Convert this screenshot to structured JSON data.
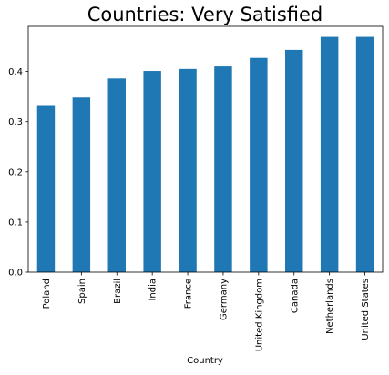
{
  "chart_data": {
    "type": "bar",
    "title": "Countries: Very Satisfied",
    "xlabel": "Country",
    "ylabel": "",
    "categories": [
      "Poland",
      "Spain",
      "Brazil",
      "India",
      "France",
      "Germany",
      "United Kingdom",
      "Canada",
      "Netherlands",
      "United States"
    ],
    "values": [
      0.333,
      0.348,
      0.386,
      0.401,
      0.405,
      0.41,
      0.427,
      0.443,
      0.469,
      0.469
    ],
    "ylim": [
      0,
      0.49
    ],
    "yticks": [
      0.0,
      0.1,
      0.2,
      0.3,
      0.4
    ],
    "ytick_labels": [
      "0.0",
      "0.1",
      "0.2",
      "0.3",
      "0.4"
    ],
    "bar_color": "#1f77b4",
    "grid": false,
    "legend": "none"
  }
}
